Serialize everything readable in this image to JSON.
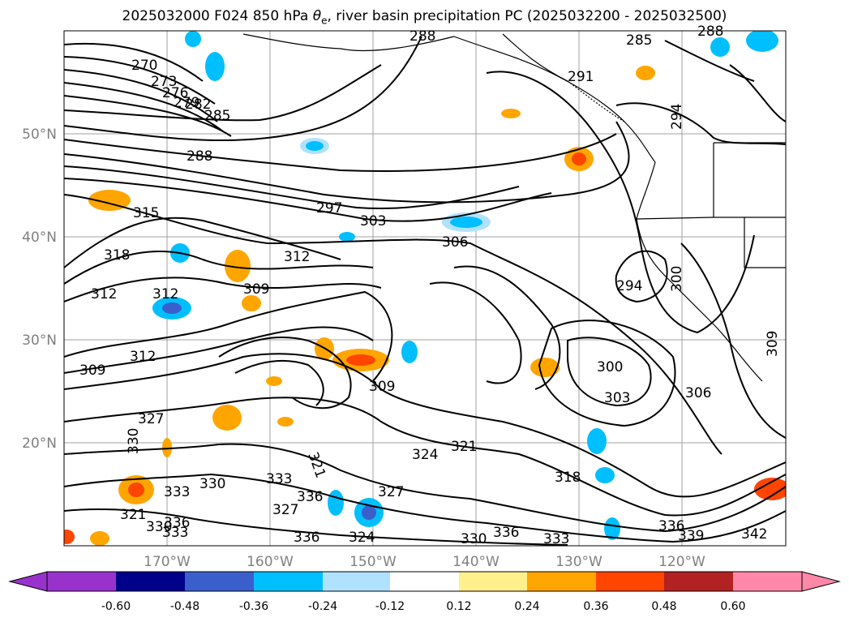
{
  "title_parts": {
    "prefix": "2025032000 F024 850 hPa ",
    "symbol": "θ",
    "subscript": "e",
    "suffix": ", river basin precipitation PC (2025032200 - 2025032500)"
  },
  "map": {
    "lon_labels": [
      "170°W",
      "160°W",
      "150°W",
      "140°W",
      "130°W",
      "120°W"
    ],
    "lat_labels": [
      "50°N",
      "40°N",
      "30°N",
      "20°N"
    ],
    "gridlines": true
  },
  "contour_labels": [
    "270",
    "273",
    "276",
    "279",
    "282",
    "285",
    "288",
    "288",
    "285",
    "288",
    "291",
    "294",
    "297",
    "303",
    "306",
    "309",
    "312",
    "312",
    "315",
    "318",
    "312",
    "309",
    "312",
    "309",
    "303",
    "300",
    "306",
    "309",
    "294",
    "300",
    "327",
    "330",
    "324",
    "321",
    "318",
    "327",
    "330",
    "333",
    "336",
    "330",
    "333",
    "336",
    "324",
    "321",
    "330",
    "336",
    "333",
    "336",
    "339",
    "342",
    "327",
    "333",
    "336",
    "321"
  ],
  "colorbar": {
    "levels": [
      "-0.60",
      "-0.48",
      "-0.36",
      "-0.24",
      "-0.12",
      "0.12",
      "0.24",
      "0.36",
      "0.48",
      "0.60"
    ],
    "colors": [
      "#9932cc",
      "#00008b",
      "#3a5fcd",
      "#00bfff",
      "#b0e2ff",
      "#ffffff",
      "#fff08c",
      "#ffa500",
      "#ff4500",
      "#b22222",
      "#ff88a8"
    ]
  }
}
